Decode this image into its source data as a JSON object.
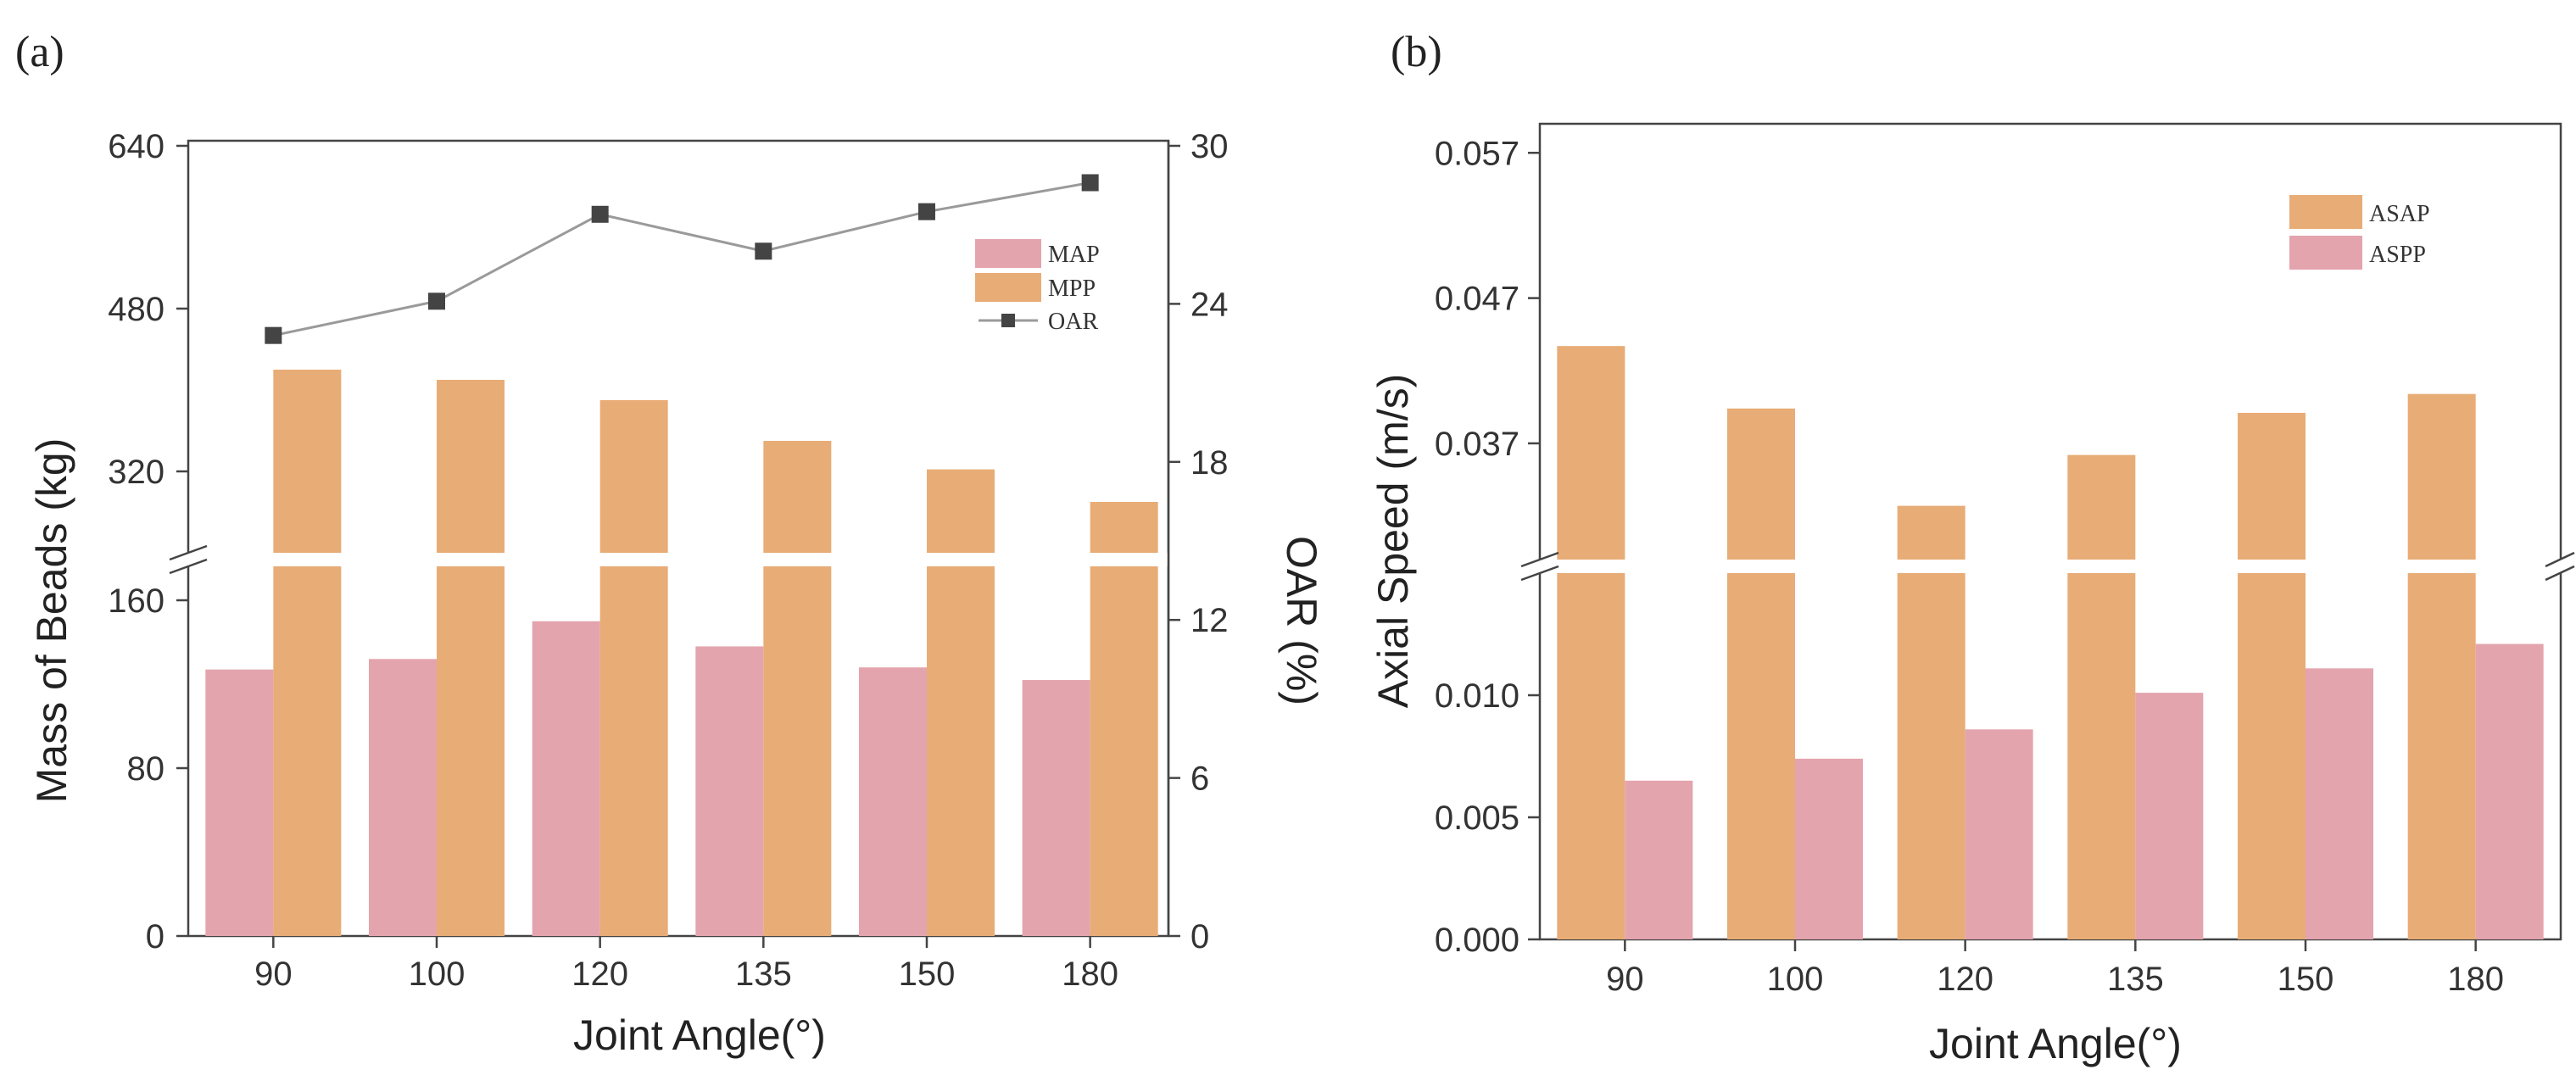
{
  "colors": {
    "pink": "#e4a4ad",
    "orange": "#e8ac76",
    "oar_line": "#9a9a9a",
    "oar_marker": "#444444"
  },
  "chart_data": [
    {
      "id": "a",
      "type": "bar",
      "panel_label": "(a)",
      "categories": [
        "90",
        "100",
        "120",
        "135",
        "150",
        "180"
      ],
      "xlabel": "Joint Angle(°)",
      "ylabel_left": "Mass of  Beads (kg)",
      "ylabel_right": "OAR (%)",
      "left_axis_broken": true,
      "left_lower_range": [
        0,
        160
      ],
      "left_upper_range": [
        240,
        640
      ],
      "left_lower_ticks": [
        "0",
        "80",
        "160"
      ],
      "left_upper_ticks": [
        "320",
        "480",
        "640"
      ],
      "right_range": [
        0,
        30
      ],
      "right_ticks": [
        "0",
        "6",
        "12",
        "18",
        "24",
        "30"
      ],
      "series": [
        {
          "name": "MAP",
          "kind": "bar",
          "values": [
            127,
            132,
            150,
            138,
            128,
            122
          ]
        },
        {
          "name": "MPP",
          "kind": "bar",
          "values": [
            420,
            410,
            390,
            350,
            322,
            290
          ]
        },
        {
          "name": "OAR",
          "kind": "line",
          "axis": "right",
          "values": [
            22.8,
            24.1,
            27.4,
            26.0,
            27.5,
            28.6
          ]
        }
      ],
      "legend": [
        "MAP",
        "MPP",
        "OAR"
      ]
    },
    {
      "id": "b",
      "type": "bar",
      "panel_label": "(b)",
      "categories": [
        "90",
        "100",
        "120",
        "135",
        "150",
        "180"
      ],
      "xlabel": "Joint Angle(°)",
      "ylabel": "Axial Speed (m/s)",
      "axis_broken": true,
      "lower_range": [
        0,
        0.015
      ],
      "upper_range": [
        0.029,
        0.059
      ],
      "lower_ticks": [
        "0.000",
        "0.005",
        "0.010"
      ],
      "upper_ticks": [
        "0.037",
        "0.047",
        "0.057"
      ],
      "series": [
        {
          "name": "ASAP",
          "kind": "bar",
          "values": [
            0.0437,
            0.0394,
            0.0327,
            0.0362,
            0.0391,
            0.0404
          ]
        },
        {
          "name": "ASPP",
          "kind": "bar",
          "values": [
            0.0065,
            0.0074,
            0.0086,
            0.0101,
            0.0111,
            0.0121
          ]
        }
      ],
      "legend": [
        "ASAP",
        "ASPP"
      ]
    }
  ]
}
